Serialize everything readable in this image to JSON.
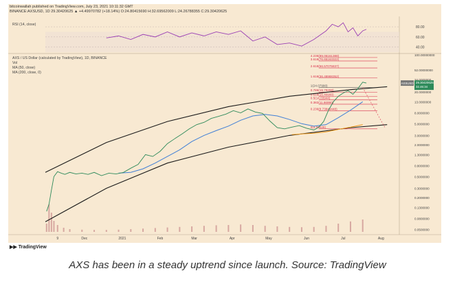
{
  "header": {
    "publisher_line": "bitcoinwallah published on TradingView.com, July 23, 2021 10:11:32 GMT",
    "symbol_line": "BINANCE:AXSUSD, 1D 29.30420625 ▲ +4.49970782 (+18.14%) O:24.80415690 H:32.69562009 L:24.26788355 C:29.30420625"
  },
  "rsi_pane": {
    "label": "RSI (14, close)",
    "ticks": [
      "80.00",
      "60.00",
      "40.00"
    ]
  },
  "main_pane": {
    "title": "AXS / US Dollar (calculated by TradingView), 1D, BINANCE",
    "indicator_labels": [
      "Vol",
      "MA (50, close)",
      "MA (200, close, 0)"
    ],
    "symbol_badge": "AXSUSD",
    "price_badge": "29.30420625",
    "price_badge_sub": "32.46:34"
  },
  "fib_levels": [
    {
      "label": "4.236(89.06161388)",
      "value": 89.06161388,
      "color": "#d9304c"
    },
    {
      "label": "3.618(76.65163322)",
      "value": 76.65163322,
      "color": "#d9304c"
    },
    {
      "label": "2.618(56.57075837)",
      "value": 56.57075837,
      "color": "#d9304c"
    },
    {
      "label": "1.618(36.48988352)",
      "value": 36.48988352,
      "color": "#d9304c"
    },
    {
      "label": "1(24.07990)",
      "value": 24.0799,
      "color": "#555555"
    },
    {
      "label": "0.786(19.78259)",
      "value": 19.78259,
      "color": "#d9304c"
    },
    {
      "label": "0.618(16.40900)",
      "value": 16.409,
      "color": "#d9304c"
    },
    {
      "label": "0.5(14.03944)",
      "value": 14.03944,
      "color": "#d9304c"
    },
    {
      "label": "0.382(11.66990)",
      "value": 11.6699,
      "color": "#d9304c"
    },
    {
      "label": "0.236(8.73849448)",
      "value": 8.73849448,
      "color": "#d9304c"
    },
    {
      "label": "0(4.00026)",
      "value": 4.00026,
      "color": "#d9304c"
    }
  ],
  "chart_data": {
    "type": "line",
    "title": "AXS / US Dollar (calculated by TradingView), 1D, BINANCE",
    "y_scale": "log",
    "ylim": [
      0.045,
      100
    ],
    "price_ticks": [
      {
        "label": "100.00000000",
        "value": 100
      },
      {
        "label": "52.00000000",
        "value": 52
      },
      {
        "label": "34.0000000",
        "value": 34
      },
      {
        "label": "20.0000000",
        "value": 20
      },
      {
        "label": "13.0000000",
        "value": 13
      },
      {
        "label": "8.0000000",
        "value": 8
      },
      {
        "label": "5.0000000",
        "value": 5
      },
      {
        "label": "3.0000000",
        "value": 3
      },
      {
        "label": "2.0000000",
        "value": 2
      },
      {
        "label": "1.3000000",
        "value": 1.3
      },
      {
        "label": "0.8000000",
        "value": 0.8
      },
      {
        "label": "0.5000000",
        "value": 0.5
      },
      {
        "label": "0.3000000",
        "value": 0.3
      },
      {
        "label": "0.2000000",
        "value": 0.2
      },
      {
        "label": "0.1300000",
        "value": 0.13
      },
      {
        "label": "0.0800000",
        "value": 0.08
      },
      {
        "label": "0.0500000",
        "value": 0.05
      }
    ],
    "x_ticks": [
      {
        "label": "9",
        "t": 0
      },
      {
        "label": "Dec",
        "t": 22
      },
      {
        "label": "2021",
        "t": 53
      },
      {
        "label": "Feb",
        "t": 84
      },
      {
        "label": "Mar",
        "t": 112
      },
      {
        "label": "Apr",
        "t": 143
      },
      {
        "label": "May",
        "t": 173
      },
      {
        "label": "Jun",
        "t": 204
      },
      {
        "label": "Jul",
        "t": 234
      },
      {
        "label": "Aug",
        "t": 265
      }
    ],
    "price_series": {
      "name": "AXSUSD",
      "t": [
        -9,
        -7,
        -5,
        -3,
        0,
        3,
        6,
        10,
        15,
        20,
        25,
        30,
        36,
        42,
        48,
        54,
        60,
        66,
        72,
        78,
        84,
        90,
        96,
        102,
        108,
        114,
        120,
        126,
        132,
        138,
        144,
        150,
        156,
        162,
        168,
        174,
        180,
        186,
        192,
        198,
        204,
        210,
        214,
        218,
        222,
        226,
        230,
        234,
        238,
        242,
        246,
        250,
        253
      ],
      "v": [
        0.11,
        0.15,
        0.28,
        0.5,
        0.62,
        0.58,
        0.55,
        0.6,
        0.56,
        0.58,
        0.55,
        0.6,
        0.52,
        0.58,
        0.56,
        0.6,
        0.72,
        0.85,
        1.3,
        1.2,
        1.5,
        2.1,
        2.6,
        3.2,
        4.0,
        4.8,
        5.3,
        6.3,
        6.9,
        7.6,
        8.8,
        8.0,
        9.5,
        8.3,
        7.8,
        5.6,
        4.2,
        4.0,
        4.3,
        4.6,
        4.1,
        3.8,
        4.3,
        5.5,
        9.0,
        13.0,
        16.5,
        19.0,
        21.0,
        18.0,
        23.0,
        30.5,
        29.3
      ]
    },
    "ma50": {
      "name": "MA (50, close)",
      "t": [
        50,
        60,
        70,
        80,
        90,
        100,
        110,
        120,
        130,
        140,
        150,
        160,
        170,
        180,
        190,
        200,
        210,
        220,
        230,
        240,
        250
      ],
      "v": [
        0.58,
        0.6,
        0.7,
        0.9,
        1.2,
        1.6,
        2.3,
        3.0,
        3.7,
        4.5,
        5.8,
        7.0,
        7.5,
        7.0,
        6.0,
        5.0,
        4.5,
        4.8,
        6.5,
        9.0,
        13.0
      ]
    },
    "ma200": {
      "name": "MA (200, close, 0)",
      "t": [
        192,
        200,
        210,
        220,
        230,
        240,
        250
      ],
      "v": [
        3.1,
        3.2,
        3.3,
        3.5,
        3.9,
        4.3,
        4.8
      ]
    },
    "volume": {
      "name": "Vol",
      "t": [
        -9,
        -7,
        -5,
        -3,
        0,
        5,
        10,
        20,
        30,
        40,
        50,
        60,
        70,
        80,
        90,
        100,
        110,
        120,
        130,
        140,
        150,
        160,
        170,
        180,
        190,
        200,
        210,
        220,
        230,
        240,
        250
      ],
      "v": [
        0.3,
        1.0,
        0.7,
        0.4,
        0.25,
        0.15,
        0.1,
        0.08,
        0.07,
        0.07,
        0.08,
        0.1,
        0.12,
        0.14,
        0.16,
        0.18,
        0.2,
        0.22,
        0.24,
        0.25,
        0.27,
        0.25,
        0.22,
        0.2,
        0.18,
        0.17,
        0.18,
        0.22,
        0.3,
        0.38,
        0.45
      ]
    },
    "rsi": {
      "name": "RSI (14, close)",
      "ylim": [
        30,
        95
      ],
      "t": [
        40,
        50,
        60,
        70,
        80,
        90,
        100,
        110,
        120,
        130,
        140,
        150,
        160,
        170,
        180,
        190,
        200,
        210,
        220,
        225,
        230,
        234,
        238,
        242,
        246,
        250,
        253
      ],
      "v": [
        58,
        62,
        55,
        65,
        60,
        70,
        60,
        68,
        62,
        70,
        65,
        72,
        52,
        60,
        45,
        48,
        42,
        55,
        72,
        85,
        80,
        88,
        70,
        78,
        62,
        72,
        75
      ]
    }
  },
  "source_credit": "TradingView",
  "caption": "AXS has been in a steady uptrend since launch. Source: TradingView"
}
